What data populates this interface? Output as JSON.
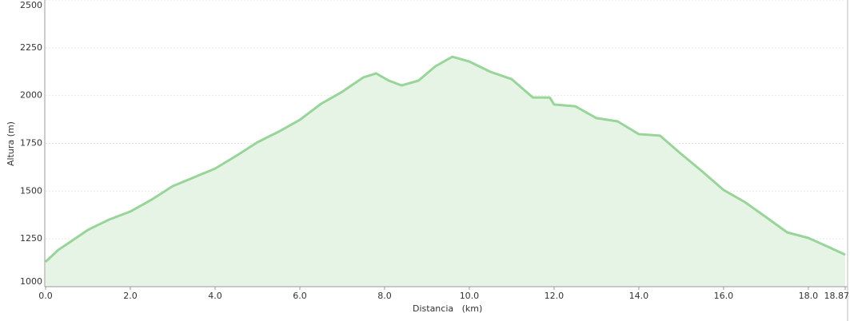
{
  "chart_data": {
    "type": "area",
    "x_label": "Distancia   (km)",
    "y_label": "Altura (m)",
    "x": [
      0,
      0.3,
      0.8,
      1.0,
      1.5,
      2.0,
      2.5,
      3.0,
      3.5,
      4.0,
      4.5,
      5.0,
      5.5,
      6.0,
      6.5,
      7.0,
      7.5,
      7.8,
      8.1,
      8.4,
      8.8,
      9.2,
      9.6,
      10.0,
      10.5,
      11.0,
      11.5,
      11.9,
      12.0,
      12.5,
      13.0,
      13.5,
      14.0,
      14.5,
      15.0,
      15.5,
      16.0,
      16.5,
      17.0,
      17.5,
      18.0,
      18.5,
      18.87
    ],
    "values": [
      1130,
      1192,
      1267,
      1297,
      1351,
      1393,
      1455,
      1526,
      1572,
      1618,
      1685,
      1756,
      1811,
      1873,
      1957,
      2020,
      2095,
      2116,
      2078,
      2053,
      2078,
      2153,
      2203,
      2178,
      2124,
      2086,
      1990,
      1990,
      1953,
      1944,
      1882,
      1865,
      1798,
      1790,
      1694,
      1602,
      1506,
      1443,
      1364,
      1284,
      1255,
      1205,
      1167
    ],
    "color": "#98d598",
    "fill_color": "#e6f4e6",
    "xlim": [
      0,
      18.87
    ],
    "xticks": [
      {
        "value": 0,
        "label": "0.0"
      },
      {
        "value": 2,
        "label": "2.0"
      },
      {
        "value": 4,
        "label": "4.0"
      },
      {
        "value": 6,
        "label": "6.0"
      },
      {
        "value": 8,
        "label": "8.0"
      },
      {
        "value": 10,
        "label": "10.0"
      },
      {
        "value": 12,
        "label": "12.0"
      },
      {
        "value": 14,
        "label": "14.0"
      },
      {
        "value": 16,
        "label": "16.0"
      },
      {
        "value": 18,
        "label": "18.0"
      },
      18.87
    ],
    "ylim": [
      1000,
      2500
    ],
    "yticks": [
      1000,
      1250,
      1500,
      1750,
      2000,
      2250,
      2500
    ],
    "grid": true
  }
}
